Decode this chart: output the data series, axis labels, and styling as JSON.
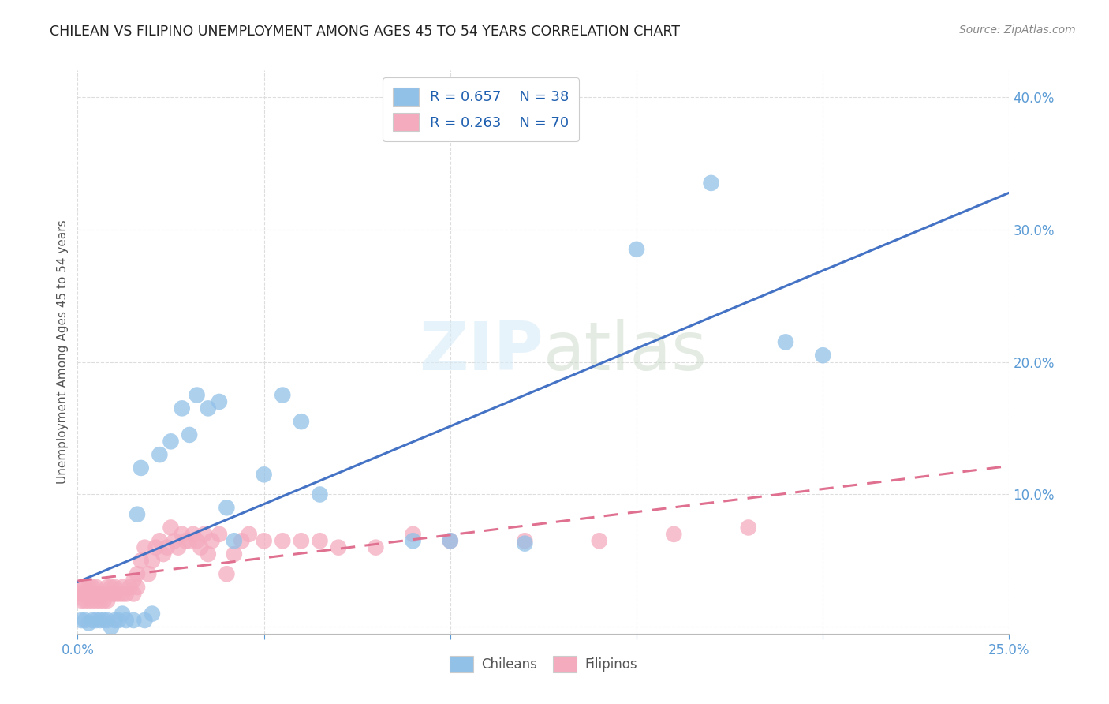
{
  "title": "CHILEAN VS FILIPINO UNEMPLOYMENT AMONG AGES 45 TO 54 YEARS CORRELATION CHART",
  "source": "Source: ZipAtlas.com",
  "ylabel": "Unemployment Among Ages 45 to 54 years",
  "xlim": [
    0.0,
    0.25
  ],
  "ylim": [
    -0.005,
    0.42
  ],
  "yticks": [
    0.0,
    0.1,
    0.2,
    0.3,
    0.4
  ],
  "ytick_labels": [
    "",
    "10.0%",
    "20.0%",
    "30.0%",
    "40.0%"
  ],
  "xticks": [
    0.0,
    0.05,
    0.1,
    0.15,
    0.2,
    0.25
  ],
  "xtick_labels": [
    "0.0%",
    "",
    "",
    "",
    "",
    "25.0%"
  ],
  "chilean_R": 0.657,
  "chilean_N": 38,
  "filipino_R": 0.263,
  "filipino_N": 70,
  "chilean_color": "#92C1E8",
  "chilean_line_color": "#4472C4",
  "filipino_color": "#F4ABBE",
  "filipino_line_color": "#E07090",
  "chilean_x": [
    0.001,
    0.002,
    0.003,
    0.004,
    0.005,
    0.006,
    0.007,
    0.008,
    0.009,
    0.01,
    0.011,
    0.012,
    0.013,
    0.015,
    0.016,
    0.017,
    0.018,
    0.02,
    0.022,
    0.025,
    0.028,
    0.03,
    0.032,
    0.035,
    0.038,
    0.04,
    0.042,
    0.05,
    0.055,
    0.06,
    0.065,
    0.09,
    0.1,
    0.12,
    0.15,
    0.17,
    0.19,
    0.2
  ],
  "chilean_y": [
    0.005,
    0.005,
    0.003,
    0.005,
    0.005,
    0.005,
    0.005,
    0.005,
    0.0,
    0.005,
    0.005,
    0.01,
    0.005,
    0.005,
    0.085,
    0.12,
    0.005,
    0.01,
    0.13,
    0.14,
    0.165,
    0.145,
    0.175,
    0.165,
    0.17,
    0.09,
    0.065,
    0.115,
    0.175,
    0.155,
    0.1,
    0.065,
    0.065,
    0.063,
    0.285,
    0.335,
    0.215,
    0.205
  ],
  "filipino_x": [
    0.001,
    0.001,
    0.001,
    0.002,
    0.002,
    0.002,
    0.003,
    0.003,
    0.003,
    0.004,
    0.004,
    0.005,
    0.005,
    0.005,
    0.006,
    0.006,
    0.007,
    0.007,
    0.008,
    0.008,
    0.009,
    0.009,
    0.01,
    0.01,
    0.011,
    0.012,
    0.012,
    0.013,
    0.014,
    0.015,
    0.015,
    0.016,
    0.016,
    0.017,
    0.018,
    0.019,
    0.02,
    0.021,
    0.022,
    0.023,
    0.024,
    0.025,
    0.026,
    0.027,
    0.028,
    0.029,
    0.03,
    0.031,
    0.032,
    0.033,
    0.034,
    0.035,
    0.036,
    0.038,
    0.04,
    0.042,
    0.044,
    0.046,
    0.05,
    0.055,
    0.06,
    0.065,
    0.07,
    0.08,
    0.09,
    0.1,
    0.12,
    0.14,
    0.16,
    0.18
  ],
  "filipino_y": [
    0.02,
    0.025,
    0.03,
    0.02,
    0.025,
    0.03,
    0.02,
    0.025,
    0.03,
    0.02,
    0.03,
    0.02,
    0.025,
    0.03,
    0.02,
    0.025,
    0.02,
    0.025,
    0.02,
    0.03,
    0.025,
    0.03,
    0.025,
    0.03,
    0.025,
    0.025,
    0.03,
    0.025,
    0.03,
    0.025,
    0.035,
    0.03,
    0.04,
    0.05,
    0.06,
    0.04,
    0.05,
    0.06,
    0.065,
    0.055,
    0.06,
    0.075,
    0.065,
    0.06,
    0.07,
    0.065,
    0.065,
    0.07,
    0.065,
    0.06,
    0.07,
    0.055,
    0.065,
    0.07,
    0.04,
    0.055,
    0.065,
    0.07,
    0.065,
    0.065,
    0.065,
    0.065,
    0.06,
    0.06,
    0.07,
    0.065,
    0.065,
    0.065,
    0.07,
    0.075
  ],
  "watermark_zip": "ZIP",
  "watermark_atlas": "atlas",
  "background_color": "#FFFFFF",
  "grid_color": "#DDDDDD"
}
